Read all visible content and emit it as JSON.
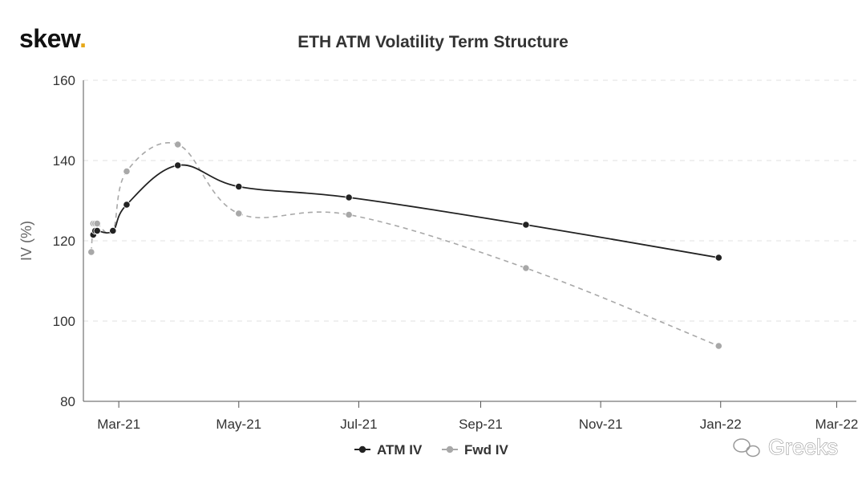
{
  "logo": {
    "text": "skew",
    "dot": "."
  },
  "watermark": {
    "text": "Greeks",
    "icon": "wechat-icon"
  },
  "chart_data": {
    "type": "line",
    "title": "ETH ATM Volatility Term Structure",
    "xlabel": "",
    "ylabel": "IV (%)",
    "ylim": [
      80,
      160
    ],
    "yticks": [
      "80",
      "100",
      "120",
      "140",
      "160"
    ],
    "xlim": [
      "2021-02-11",
      "2022-03-11"
    ],
    "xticks": [
      {
        "date": "2021-03-01",
        "label": "Mar-21"
      },
      {
        "date": "2021-05-01",
        "label": "May-21"
      },
      {
        "date": "2021-07-01",
        "label": "Jul-21"
      },
      {
        "date": "2021-09-01",
        "label": "Sep-21"
      },
      {
        "date": "2021-11-01",
        "label": "Nov-21"
      },
      {
        "date": "2022-01-01",
        "label": "Jan-22"
      },
      {
        "date": "2022-03-01",
        "label": "Mar-22"
      }
    ],
    "grid": "horizontal-dashed",
    "legend": "bottom-center",
    "series": [
      {
        "name": "ATM IV",
        "color": "#222222",
        "dash": "solid",
        "points": [
          [
            "2021-02-16",
            121.5
          ],
          [
            "2021-02-17",
            122.5
          ],
          [
            "2021-02-18",
            122.5
          ],
          [
            "2021-02-26",
            122.5
          ],
          [
            "2021-03-05",
            129
          ],
          [
            "2021-03-31",
            138.8
          ],
          [
            "2021-05-01",
            133.5
          ],
          [
            "2021-06-26",
            130.8
          ],
          [
            "2021-09-24",
            124
          ],
          [
            "2021-12-31",
            115.8
          ]
        ]
      },
      {
        "name": "Fwd IV",
        "color": "#a8a8a8",
        "dash": "dashed",
        "points": [
          [
            "2021-02-15",
            117.2
          ],
          [
            "2021-02-16",
            124.3
          ],
          [
            "2021-02-17",
            124.3
          ],
          [
            "2021-02-18",
            124.3
          ],
          [
            "2021-02-26",
            122.5
          ],
          [
            "2021-03-05",
            137.3
          ],
          [
            "2021-03-31",
            144
          ],
          [
            "2021-05-01",
            126.8
          ],
          [
            "2021-06-26",
            126.5
          ],
          [
            "2021-09-24",
            113.2
          ],
          [
            "2021-12-31",
            93.8
          ]
        ]
      }
    ]
  }
}
